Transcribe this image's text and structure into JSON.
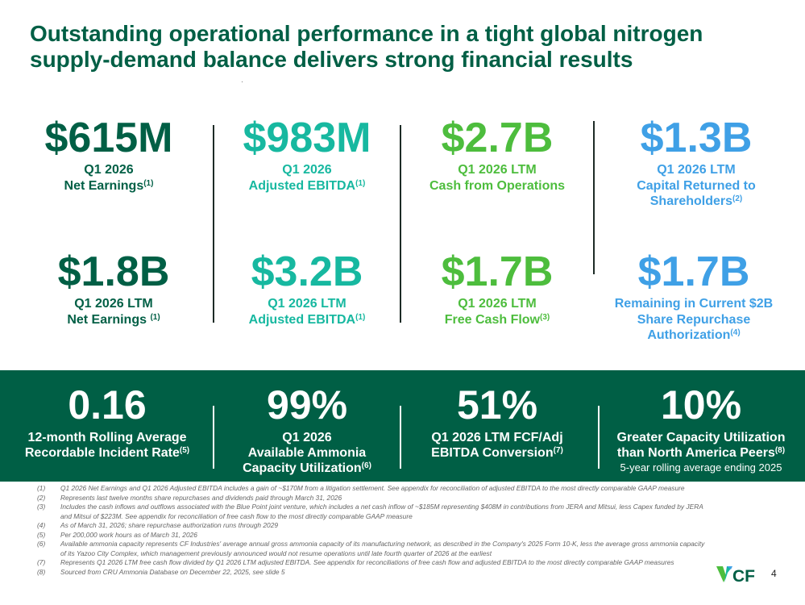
{
  "title": "Outstanding operational performance in a tight global nitrogen supply-demand balance delivers strong financial results",
  "metrics_top": [
    {
      "value": "$615M",
      "line1": "Q1 2026",
      "line2": "Net Earnings",
      "note": "(1)",
      "color": "#005f45"
    },
    {
      "value": "$983M",
      "line1": "Q1 2026",
      "line2": "Adjusted EBITDA",
      "note": "(1)",
      "color": "#17b8a0"
    },
    {
      "value": "$2.7B",
      "line1": "Q1 2026 LTM",
      "line2": "Cash from Operations",
      "note": "",
      "color": "#4dbd3d"
    },
    {
      "value": "$1.3B",
      "line1": "Q1 2026 LTM",
      "line2": "Capital Returned to",
      "line3": "Shareholders",
      "note": "(2)",
      "color": "#3fa0e6"
    }
  ],
  "metrics_mid": [
    {
      "value": "$1.8B",
      "line1": "Q1 2026 LTM",
      "line2": "Net Earnings ",
      "note": "(1)"
    },
    {
      "value": "$3.2B",
      "line1": "Q1 2026 LTM",
      "line2": "Adjusted EBITDA",
      "note": "(1)"
    },
    {
      "value": "$1.7B",
      "line1": "Q1 2026 LTM",
      "line2": "Free Cash Flow",
      "note": "(3)"
    },
    {
      "value": "$1.7B",
      "line1": "Remaining in Current $2B",
      "line2": "Share Repurchase",
      "line3": "Authorization",
      "note": "(4)"
    }
  ],
  "band": [
    {
      "value": "0.16",
      "line1": "12-month Rolling Average",
      "line2": "Recordable Incident Rate",
      "note": "(5)"
    },
    {
      "value": "99%",
      "line1": "Q1 2026",
      "line2": "Available Ammonia",
      "line3": "Capacity Utilization",
      "note": "(6)"
    },
    {
      "value": "51%",
      "line1": "Q1 2026 LTM FCF/Adj",
      "line2": "EBITDA Conversion",
      "note": "(7)"
    },
    {
      "value": "10%",
      "line1": "Greater Capacity Utilization",
      "line2": "than North America Peers",
      "note": "(8)",
      "sub": "5-year rolling average ending 2025"
    }
  ],
  "footnotes": [
    {
      "num": "(1)",
      "text": "Q1 2026 Net Earnings and Q1 2026 Adjusted EBITDA includes a gain of ~$170M from a litigation settlement. See appendix for reconciliation of adjusted EBITDA to the most directly comparable GAAP measure"
    },
    {
      "num": "(2)",
      "text": "Represents last twelve months share repurchases and dividends paid through March 31, 2026"
    },
    {
      "num": "(3)",
      "text": "Includes the cash inflows and outflows associated with the Blue Point joint venture, which includes a net cash inflow of ~$185M representing $408M in contributions from JERA and Mitsui, less Capex funded by JERA and Mitsui of $223M. See appendix for reconciliation of free cash flow to the most directly comparable GAAP measure"
    },
    {
      "num": "(4)",
      "text": "As of March 31, 2026; share repurchase authorization runs through 2029"
    },
    {
      "num": "(5)",
      "text": "Per 200,000 work hours as of March 31, 2026"
    },
    {
      "num": "(6)",
      "text": "Available ammonia capacity represents CF Industries' average annual gross ammonia capacity of its manufacturing network, as described in the Company's 2025 Form 10-K, less the average gross ammonia capacity of its Yazoo City Complex, which management previously announced would not resume operations until late fourth quarter of 2026 at the earliest"
    },
    {
      "num": "(7)",
      "text": "Represents Q1 2026 LTM free cash flow divided by Q1 2026 LTM adjusted EBITDA. See appendix for reconciliations of free cash flow and adjusted EBITDA to the most directly comparable GAAP measures"
    },
    {
      "num": "(8)",
      "text": "Sourced from CRU Ammonia Database on December 22, 2025, see slide 5"
    }
  ],
  "logo": {
    "text": "CF",
    "icon": "cf-industries-logo",
    "colors": [
      "#005f45",
      "#4dbd3d",
      "#17b8a0",
      "#3fa0e6"
    ]
  },
  "page_number": "4",
  "colors": {
    "dark_green": "#005f45",
    "teal": "#17b8a0",
    "green": "#4dbd3d",
    "blue": "#3fa0e6",
    "band": "#005f45"
  }
}
